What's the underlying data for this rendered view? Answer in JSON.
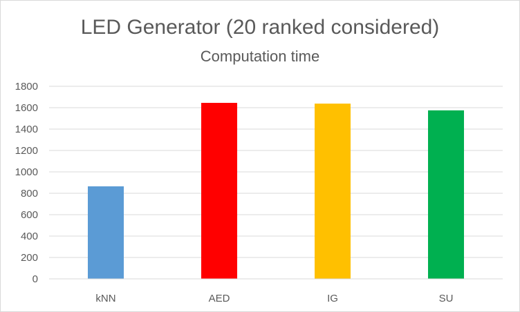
{
  "chart_data": {
    "type": "bar",
    "title": "LED Generator (20 ranked considered)",
    "subtitle": "Computation time",
    "xlabel": "",
    "ylabel": "",
    "categories": [
      "kNN",
      "AED",
      "IG",
      "SU"
    ],
    "values": [
      865,
      1645,
      1638,
      1575
    ],
    "colors": [
      "#5b9bd5",
      "#ff0000",
      "#ffc000",
      "#00b050"
    ],
    "ylim": [
      0,
      1800
    ],
    "yticks": [
      "0",
      "200",
      "400",
      "600",
      "800",
      "1000",
      "1200",
      "1400",
      "1600",
      "1800"
    ],
    "grid": true,
    "legend": "none"
  }
}
